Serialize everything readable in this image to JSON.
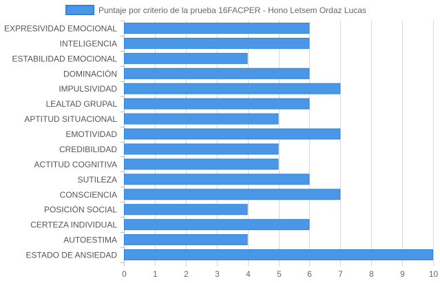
{
  "chart_data": {
    "type": "bar",
    "orientation": "horizontal",
    "legend": {
      "label": "Puntaje por criterio de la prueba 16FACPER - Hono Letsem Ordaz Lucas",
      "position": "top"
    },
    "categories": [
      "EXPRESIVIDAD EMOCIONAL",
      "INTELIGENCIA",
      "ESTABILIDAD EMOCIONAL",
      "DOMINACIÓN",
      "IMPULSIVIDAD",
      "LEALTAD GRUPAL",
      "APTITUD SITUACIONAL",
      "EMOTIVIDAD",
      "CREDIBILIDAD",
      "ACTITUD COGNITIVA",
      "SUTILEZA",
      "CONSCIENCIA",
      "POSICIÓN SOCIAL",
      "CERTEZA INDIVIDUAL",
      "AUTOESTIMA",
      "ESTADO DE ANSIEDAD"
    ],
    "series": [
      {
        "name": "Puntaje por criterio de la prueba 16FACPER - Hono Letsem Ordaz Lucas",
        "values": [
          6,
          6,
          4,
          6,
          7,
          6,
          5,
          7,
          5,
          5,
          6,
          7,
          4,
          6,
          4,
          10
        ]
      }
    ],
    "xlim": [
      0,
      10
    ],
    "xticks": [
      "0",
      "1",
      "2",
      "3",
      "4",
      "5",
      "6",
      "7",
      "8",
      "9",
      "10"
    ],
    "grid": true,
    "colors": {
      "bar_fill": "#4a97e8",
      "bar_stroke": "#2f84e0",
      "grid": "#d9d9d9",
      "axis": "#bfbfbf"
    }
  }
}
